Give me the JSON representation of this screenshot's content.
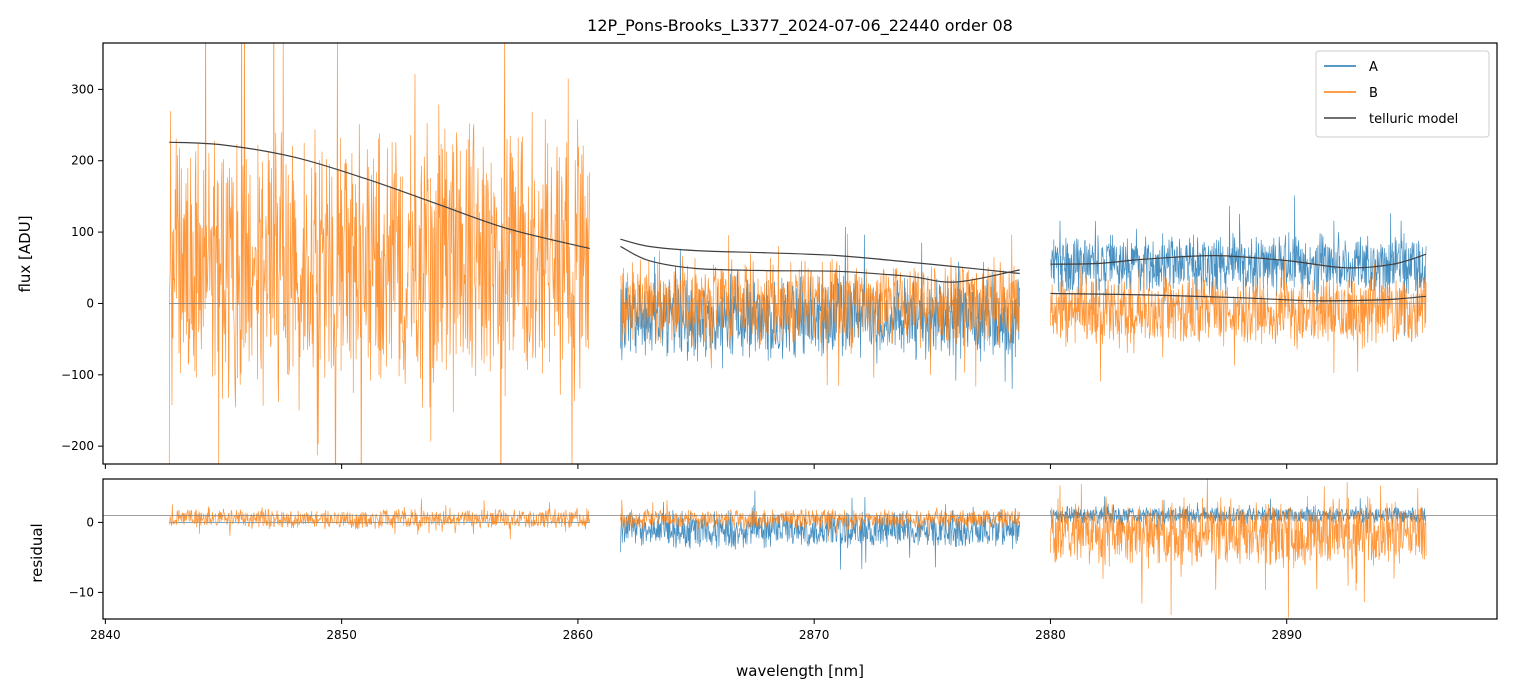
{
  "chart_data": {
    "type": "line",
    "title": "12P_Pons-Brooks_L3377_2024-07-06_22440  order 08",
    "xlabel": "wavelength [nm]",
    "xlim": [
      2839.9,
      2898.9
    ],
    "xticks": [
      2840,
      2850,
      2860,
      2870,
      2880,
      2890
    ],
    "xtick_labels": [
      "2840",
      "2850",
      "2860",
      "2870",
      "2880",
      "2890"
    ],
    "colors": {
      "A": "#1f77b4",
      "B": "#ff7f0e",
      "model": "#404040",
      "zero": "#808080"
    },
    "legend": {
      "position": "top-right",
      "entries": [
        {
          "label": "A",
          "color": "#1f77b4"
        },
        {
          "label": "B",
          "color": "#ff7f0e"
        },
        {
          "label": "telluric model",
          "color": "#404040"
        }
      ]
    },
    "segments": [
      {
        "x_start": 2842.7,
        "x_end": 2860.5
      },
      {
        "x_start": 2861.8,
        "x_end": 2878.7
      },
      {
        "x_start": 2880.0,
        "x_end": 2895.9
      }
    ],
    "upper_panel": {
      "ylabel": "flux [ADU]",
      "ylim": [
        -225,
        365
      ],
      "yticks": [
        -200,
        -100,
        0,
        100,
        200,
        300
      ],
      "ytick_labels": [
        "−200",
        "−100",
        "0",
        "100",
        "200",
        "300"
      ],
      "series": [
        {
          "name": "A",
          "segments": [
            {
              "center": 0,
              "spread": 0
            },
            {
              "center": -20,
              "spread": 55
            },
            {
              "center": 55,
              "spread": 40
            }
          ]
        },
        {
          "name": "B",
          "segments": [
            {
              "center": 60,
              "spread": 180
            },
            {
              "center": 0,
              "spread": 55
            },
            {
              "center": -10,
              "spread": 45
            }
          ]
        }
      ],
      "telluric_model": [
        {
          "segment": 0,
          "x": [
            2842.7,
            2845,
            2848,
            2851,
            2854,
            2857,
            2860.5
          ],
          "y": [
            226,
            222,
            205,
            175,
            140,
            105,
            77
          ]
        },
        {
          "segment": 1,
          "x": [
            2861.8,
            2863,
            2865,
            2868,
            2871,
            2874,
            2877,
            2878.7
          ],
          "y": [
            90,
            80,
            74,
            71,
            67,
            58,
            48,
            42
          ]
        },
        {
          "segment": 1,
          "x": [
            2861.8,
            2863,
            2865,
            2868,
            2871,
            2874,
            2876,
            2878.7
          ],
          "y": [
            80,
            60,
            49,
            46,
            45,
            38,
            30,
            47
          ]
        },
        {
          "segment": 2,
          "x": [
            2880.0,
            2882,
            2884,
            2887,
            2890,
            2892.5,
            2894.5,
            2895.9
          ],
          "y": [
            55,
            56,
            62,
            67,
            60,
            50,
            55,
            69
          ]
        },
        {
          "segment": 2,
          "x": [
            2880.0,
            2884,
            2888,
            2891,
            2894,
            2895.9
          ],
          "y": [
            14,
            12,
            8,
            4,
            5,
            10
          ]
        }
      ]
    },
    "lower_panel": {
      "ylabel": "residual",
      "ylim": [
        -13.8,
        6.2
      ],
      "yticks": [
        -10,
        0
      ],
      "ytick_labels": [
        "−10",
        "0"
      ],
      "reference_line_y": 1,
      "series": [
        {
          "name": "A",
          "segments": [
            {
              "center": 0,
              "spread": 0
            },
            {
              "center": -1,
              "spread": 2.5
            },
            {
              "center": 1,
              "spread": 1.2
            }
          ]
        },
        {
          "name": "B",
          "segments": [
            {
              "center": 0.5,
              "spread": 1.3
            },
            {
              "center": 0.5,
              "spread": 1.3
            },
            {
              "center": -1.5,
              "spread": 4.5
            }
          ]
        }
      ]
    }
  }
}
